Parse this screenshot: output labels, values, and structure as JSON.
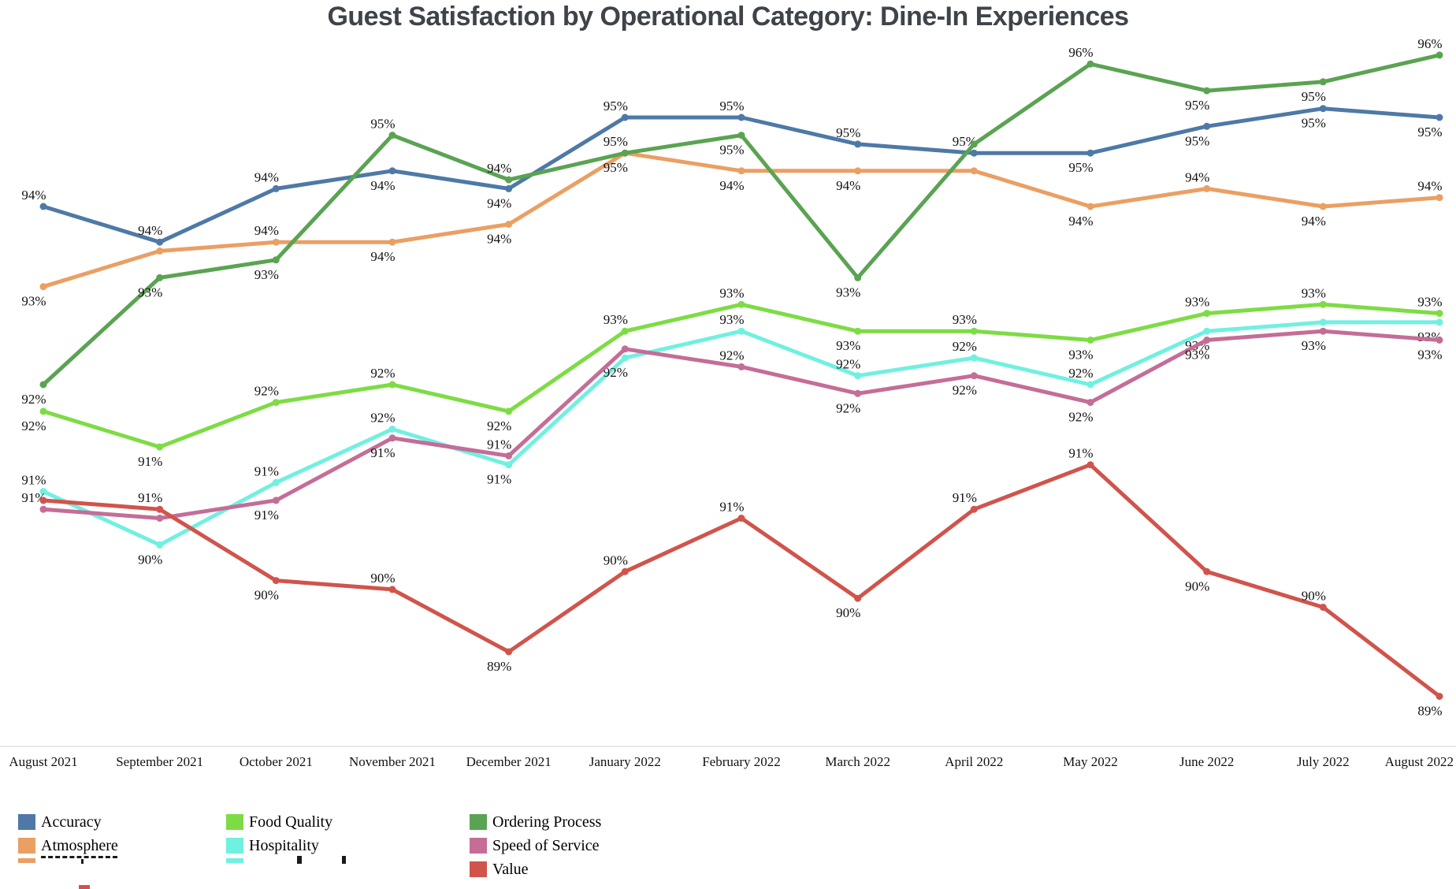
{
  "title": "Guest Satisfaction by Operational Category: Dine-In Experiences",
  "chart_data": {
    "type": "line",
    "title": "Guest Satisfaction by Operational Category: Dine-In Experiences",
    "unit": "%",
    "grid": false,
    "y_axis_visible": false,
    "ylim": [
      88,
      97
    ],
    "baseline_color": "#e9e9e9",
    "legend_position": "bottom-left",
    "categories": [
      "August 2021",
      "September 2021",
      "October 2021",
      "November 2021",
      "December 2021",
      "January 2022",
      "February 2022",
      "March 2022",
      "April 2022",
      "May 2022",
      "June 2022",
      "July 2022",
      "August 2022"
    ],
    "series": [
      {
        "name": "Accuracy",
        "color": "#4e79a7",
        "values": [
          94.0,
          93.6,
          94.2,
          94.4,
          94.2,
          95.0,
          95.0,
          94.7,
          94.6,
          94.6,
          94.9,
          95.1,
          95.0
        ],
        "labels": [
          "94%",
          "94%",
          "94%",
          "94%",
          "94%",
          "95%",
          "95%",
          "95%",
          "95%",
          "95%",
          "95%",
          "95%",
          "95%"
        ],
        "label_pos": [
          "above",
          "above",
          "above",
          "below",
          "below",
          "above",
          "above",
          "above",
          "above",
          "below",
          "below",
          "below",
          "below"
        ]
      },
      {
        "name": "Atmosphere",
        "color": "#ea9f63",
        "values": [
          93.1,
          93.5,
          93.6,
          93.6,
          93.8,
          94.6,
          94.4,
          94.4,
          94.4,
          94.0,
          94.2,
          94.0,
          94.1
        ],
        "labels": [
          "93%",
          "94%",
          "94%",
          "94%",
          "94%",
          "95%",
          "94%",
          "94%",
          "94%",
          "94%",
          "94%",
          "94%",
          "94%"
        ],
        "label_pos": [
          "below",
          "hidden",
          "above",
          "below",
          "below",
          "above",
          "below",
          "below",
          "hidden",
          "below",
          "above",
          "below",
          "above"
        ]
      },
      {
        "name": "Food Quality",
        "color": "#7ddc44",
        "values": [
          91.7,
          91.3,
          91.8,
          92.0,
          91.7,
          92.6,
          92.9,
          92.6,
          92.6,
          92.5,
          92.8,
          92.9,
          92.8
        ],
        "labels": [
          "92%",
          "91%",
          "92%",
          "92%",
          "92%",
          "93%",
          "93%",
          "93%",
          "93%",
          "93%",
          "93%",
          "93%",
          "93%"
        ],
        "label_pos": [
          "below",
          "below",
          "above",
          "above",
          "below",
          "above",
          "above",
          "below",
          "above",
          "below",
          "above",
          "above",
          "above"
        ]
      },
      {
        "name": "Hospitality",
        "color": "#70f0e0",
        "values": [
          90.8,
          90.2,
          90.9,
          91.5,
          91.1,
          92.3,
          92.6,
          92.1,
          92.3,
          92.0,
          92.6,
          92.7,
          92.7
        ],
        "labels": [
          "91%",
          "90%",
          "91%",
          "92%",
          "91%",
          "92%",
          "93%",
          "92%",
          "92%",
          "92%",
          "93%",
          "93%",
          "93%"
        ],
        "label_pos": [
          "above",
          "below",
          "above",
          "above",
          "below",
          "below",
          "above",
          "above",
          "above",
          "above",
          "below",
          "hidden",
          "below"
        ]
      },
      {
        "name": "Ordering Process",
        "color": "#5aa352",
        "values": [
          92.0,
          93.2,
          93.4,
          94.8,
          94.3,
          94.6,
          94.8,
          93.2,
          94.7,
          95.6,
          95.3,
          95.4,
          95.7
        ],
        "labels": [
          "92%",
          "93%",
          "93%",
          "95%",
          "94%",
          "95%",
          "95%",
          "93%",
          "95%",
          "96%",
          "95%",
          "95%",
          "96%"
        ],
        "label_pos": [
          "below",
          "below",
          "below",
          "above",
          "above",
          "below",
          "below",
          "below",
          "hidden",
          "above",
          "below",
          "below",
          "above"
        ]
      },
      {
        "name": "Speed of Service",
        "color": "#c46d97",
        "values": [
          90.6,
          90.5,
          90.7,
          91.4,
          91.2,
          92.4,
          92.2,
          91.9,
          92.1,
          91.8,
          92.5,
          92.6,
          92.5
        ],
        "labels": [
          "91%",
          "91%",
          "91%",
          "91%",
          "91%",
          "92%",
          "92%",
          "92%",
          "92%",
          "92%",
          "93%",
          "93%",
          "93%"
        ],
        "label_pos": [
          "above",
          "hidden",
          "below",
          "below",
          "above",
          "hidden",
          "above",
          "below",
          "below",
          "below",
          "below",
          "below",
          "below"
        ]
      },
      {
        "name": "Value",
        "color": "#d0544c",
        "values": [
          90.7,
          90.6,
          89.8,
          89.7,
          89.0,
          89.9,
          90.5,
          89.6,
          90.6,
          91.1,
          89.9,
          89.5,
          88.5
        ],
        "labels": [
          "91%",
          "91%",
          "90%",
          "90%",
          "89%",
          "90%",
          "91%",
          "90%",
          "91%",
          "91%",
          "90%",
          "90%",
          "89%"
        ],
        "label_pos": [
          "hidden",
          "above",
          "below",
          "above",
          "below",
          "above",
          "above",
          "below",
          "above",
          "above",
          "below",
          "above",
          "below"
        ]
      }
    ]
  },
  "legend": {
    "columns": [
      [
        "Accuracy",
        "Atmosphere"
      ],
      [
        "Food Quality",
        "Hospitality"
      ],
      [
        "Ordering Process",
        "Speed of Service",
        "Value"
      ]
    ]
  }
}
